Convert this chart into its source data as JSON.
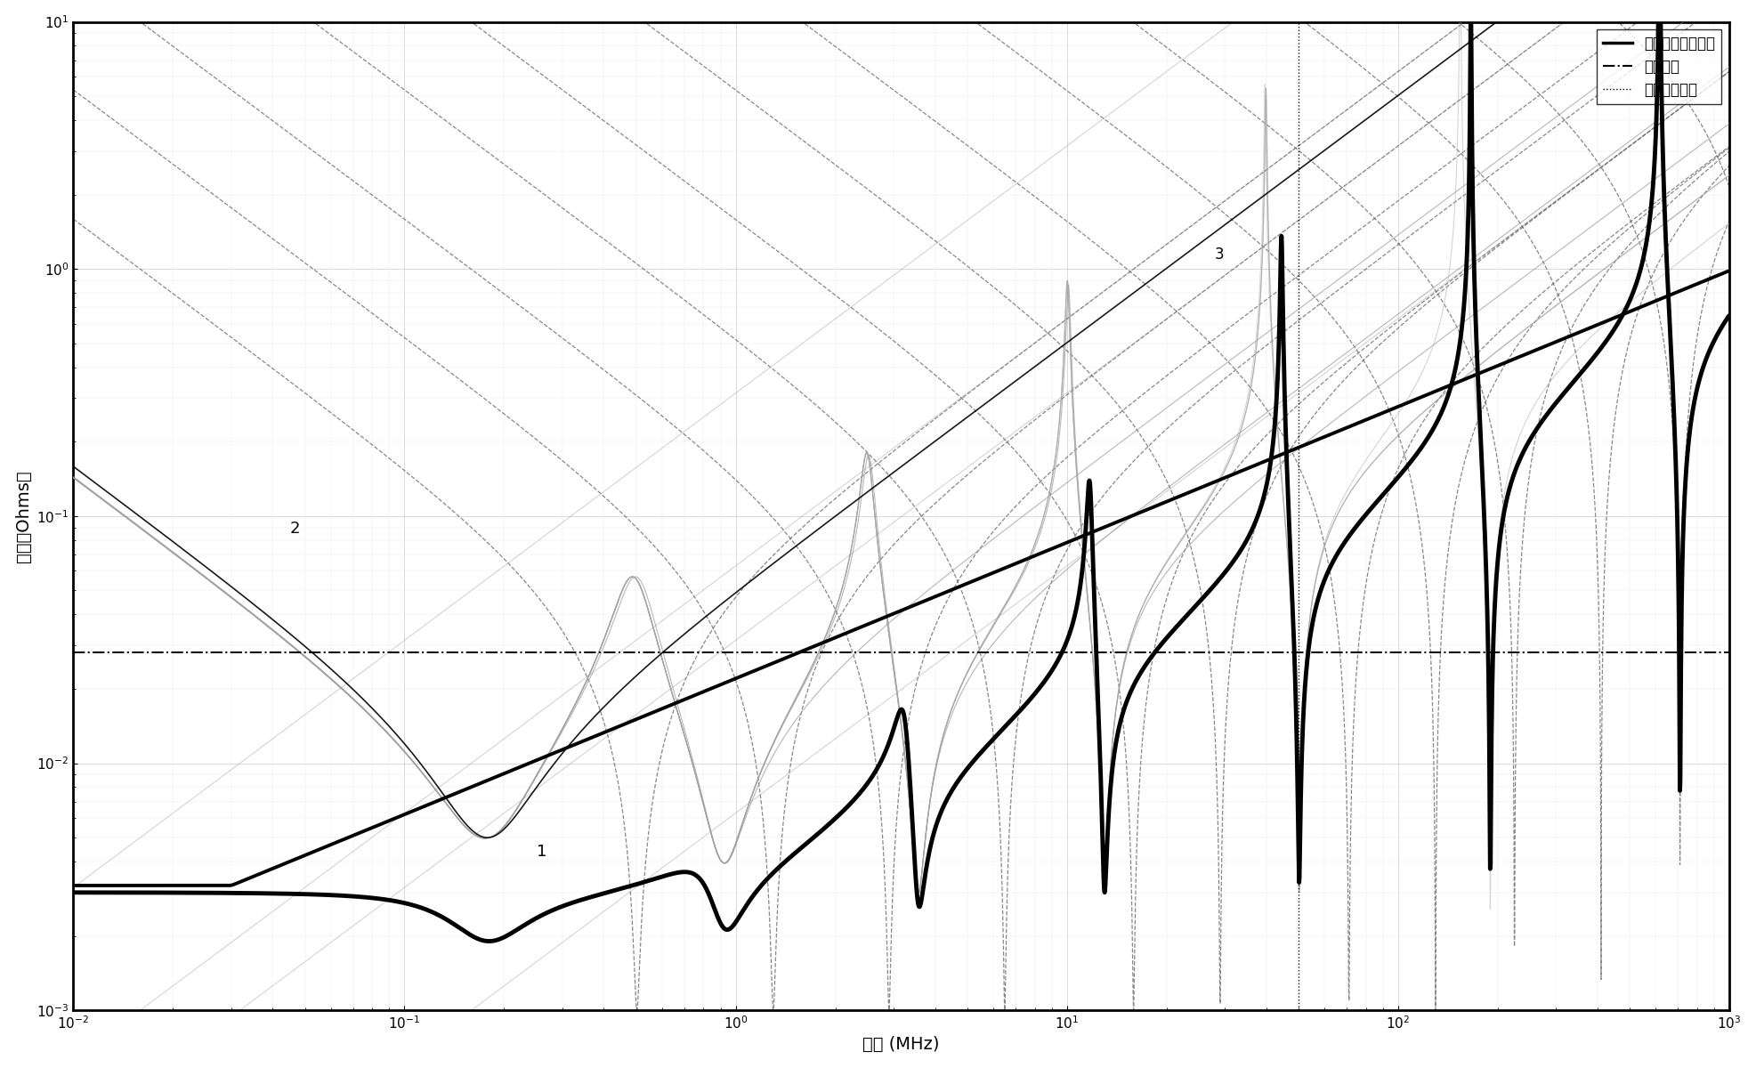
{
  "xlabel": "频率 (MHz)",
  "ylabel": "阻抗（Ohms）",
  "xmin": 0.01,
  "xmax": 1000,
  "ymin": 0.001,
  "ymax": 10,
  "target_impedance": 0.028,
  "cutoff_freq": 50,
  "legend_labels": [
    "最终实际目标阻抗",
    "目标阻抗",
    "截止目标频率"
  ],
  "bg_color": "#ffffff",
  "line_color": "#000000"
}
